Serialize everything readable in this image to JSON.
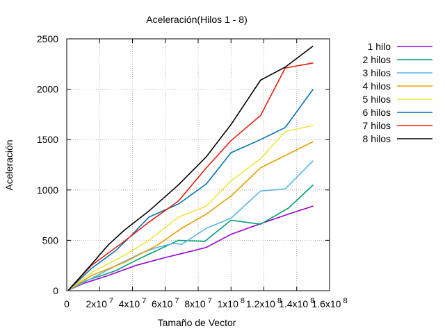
{
  "chart_data": {
    "type": "line",
    "title": "Aceleración(Hilos 1 - 8)",
    "xlabel": "Tamaño de Vector",
    "ylabel": "Aceleración",
    "xlim": [
      0,
      160000000
    ],
    "ylim": [
      0,
      2500
    ],
    "grid": true,
    "legend_position": "right",
    "x_ticks": [
      {
        "value": 0,
        "base": "0",
        "exp": ""
      },
      {
        "value": 20000000,
        "base": "2x10",
        "exp": "7"
      },
      {
        "value": 40000000,
        "base": "4x10",
        "exp": "7"
      },
      {
        "value": 60000000,
        "base": "6x10",
        "exp": "7"
      },
      {
        "value": 80000000,
        "base": "8x10",
        "exp": "7"
      },
      {
        "value": 100000000,
        "base": "1x10",
        "exp": "8"
      },
      {
        "value": 120000000,
        "base": "1.2x10",
        "exp": "8"
      },
      {
        "value": 140000000,
        "base": "1.4x10",
        "exp": "8"
      },
      {
        "value": 160000000,
        "base": "1.6x10",
        "exp": "8"
      }
    ],
    "y_ticks": [
      {
        "value": 0,
        "label": "0"
      },
      {
        "value": 500,
        "label": "500"
      },
      {
        "value": 1000,
        "label": "1000"
      },
      {
        "value": 1500,
        "label": "1500"
      },
      {
        "value": 2000,
        "label": "2000"
      },
      {
        "value": 2500,
        "label": "2500"
      }
    ],
    "series": [
      {
        "name": "1 hilo",
        "color": "#9400d3",
        "points": [
          [
            1000000,
            5
          ],
          [
            10000000,
            70
          ],
          [
            25000000,
            150
          ],
          [
            42000000,
            250
          ],
          [
            60000000,
            330
          ],
          [
            68000000,
            360
          ],
          [
            85000000,
            430
          ],
          [
            100000000,
            560
          ],
          [
            118000000,
            665
          ],
          [
            135000000,
            760
          ],
          [
            150000000,
            840
          ]
        ]
      },
      {
        "name": "2 hilos",
        "color": "#009e73",
        "points": [
          [
            1000000,
            5
          ],
          [
            12000000,
            100
          ],
          [
            30000000,
            200
          ],
          [
            42000000,
            300
          ],
          [
            55000000,
            400
          ],
          [
            68000000,
            500
          ],
          [
            84000000,
            490
          ],
          [
            100000000,
            700
          ],
          [
            118000000,
            660
          ],
          [
            135000000,
            820
          ],
          [
            150000000,
            1050
          ]
        ]
      },
      {
        "name": "3 hilos",
        "color": "#56b4e9",
        "points": [
          [
            1000000,
            5
          ],
          [
            15000000,
            120
          ],
          [
            30000000,
            250
          ],
          [
            45000000,
            370
          ],
          [
            55000000,
            430
          ],
          [
            65000000,
            470
          ],
          [
            70000000,
            460
          ],
          [
            85000000,
            620
          ],
          [
            100000000,
            720
          ],
          [
            118000000,
            990
          ],
          [
            133000000,
            1010
          ],
          [
            150000000,
            1290
          ]
        ]
      },
      {
        "name": "4 hilos",
        "color": "#e69f00",
        "points": [
          [
            1000000,
            5
          ],
          [
            15000000,
            150
          ],
          [
            35000000,
            280
          ],
          [
            55000000,
            450
          ],
          [
            70000000,
            620
          ],
          [
            85000000,
            760
          ],
          [
            100000000,
            940
          ],
          [
            118000000,
            1220
          ],
          [
            150000000,
            1480
          ]
        ]
      },
      {
        "name": "5 hilos",
        "color": "#f0e442",
        "points": [
          [
            1000000,
            5
          ],
          [
            15000000,
            180
          ],
          [
            35000000,
            350
          ],
          [
            50000000,
            500
          ],
          [
            68000000,
            730
          ],
          [
            85000000,
            840
          ],
          [
            100000000,
            1090
          ],
          [
            118000000,
            1310
          ],
          [
            133000000,
            1580
          ],
          [
            150000000,
            1640
          ]
        ]
      },
      {
        "name": "6 hilos",
        "color": "#0072b2",
        "points": [
          [
            1000000,
            5
          ],
          [
            15000000,
            220
          ],
          [
            30000000,
            400
          ],
          [
            40000000,
            560
          ],
          [
            50000000,
            730
          ],
          [
            68000000,
            860
          ],
          [
            85000000,
            1060
          ],
          [
            100000000,
            1370
          ],
          [
            118000000,
            1500
          ],
          [
            133000000,
            1620
          ],
          [
            150000000,
            2000
          ]
        ]
      },
      {
        "name": "7 hilos",
        "color": "#e51e10",
        "points": [
          [
            1000000,
            5
          ],
          [
            15000000,
            250
          ],
          [
            35000000,
            490
          ],
          [
            50000000,
            680
          ],
          [
            68000000,
            890
          ],
          [
            85000000,
            1220
          ],
          [
            100000000,
            1490
          ],
          [
            118000000,
            1740
          ],
          [
            133000000,
            2210
          ],
          [
            150000000,
            2260
          ]
        ]
      },
      {
        "name": "8 hilos",
        "color": "#000000",
        "points": [
          [
            1000000,
            5
          ],
          [
            15000000,
            260
          ],
          [
            25000000,
            450
          ],
          [
            35000000,
            600
          ],
          [
            50000000,
            790
          ],
          [
            68000000,
            1050
          ],
          [
            85000000,
            1330
          ],
          [
            100000000,
            1650
          ],
          [
            118000000,
            2090
          ],
          [
            133000000,
            2220
          ],
          [
            150000000,
            2430
          ]
        ]
      }
    ]
  }
}
